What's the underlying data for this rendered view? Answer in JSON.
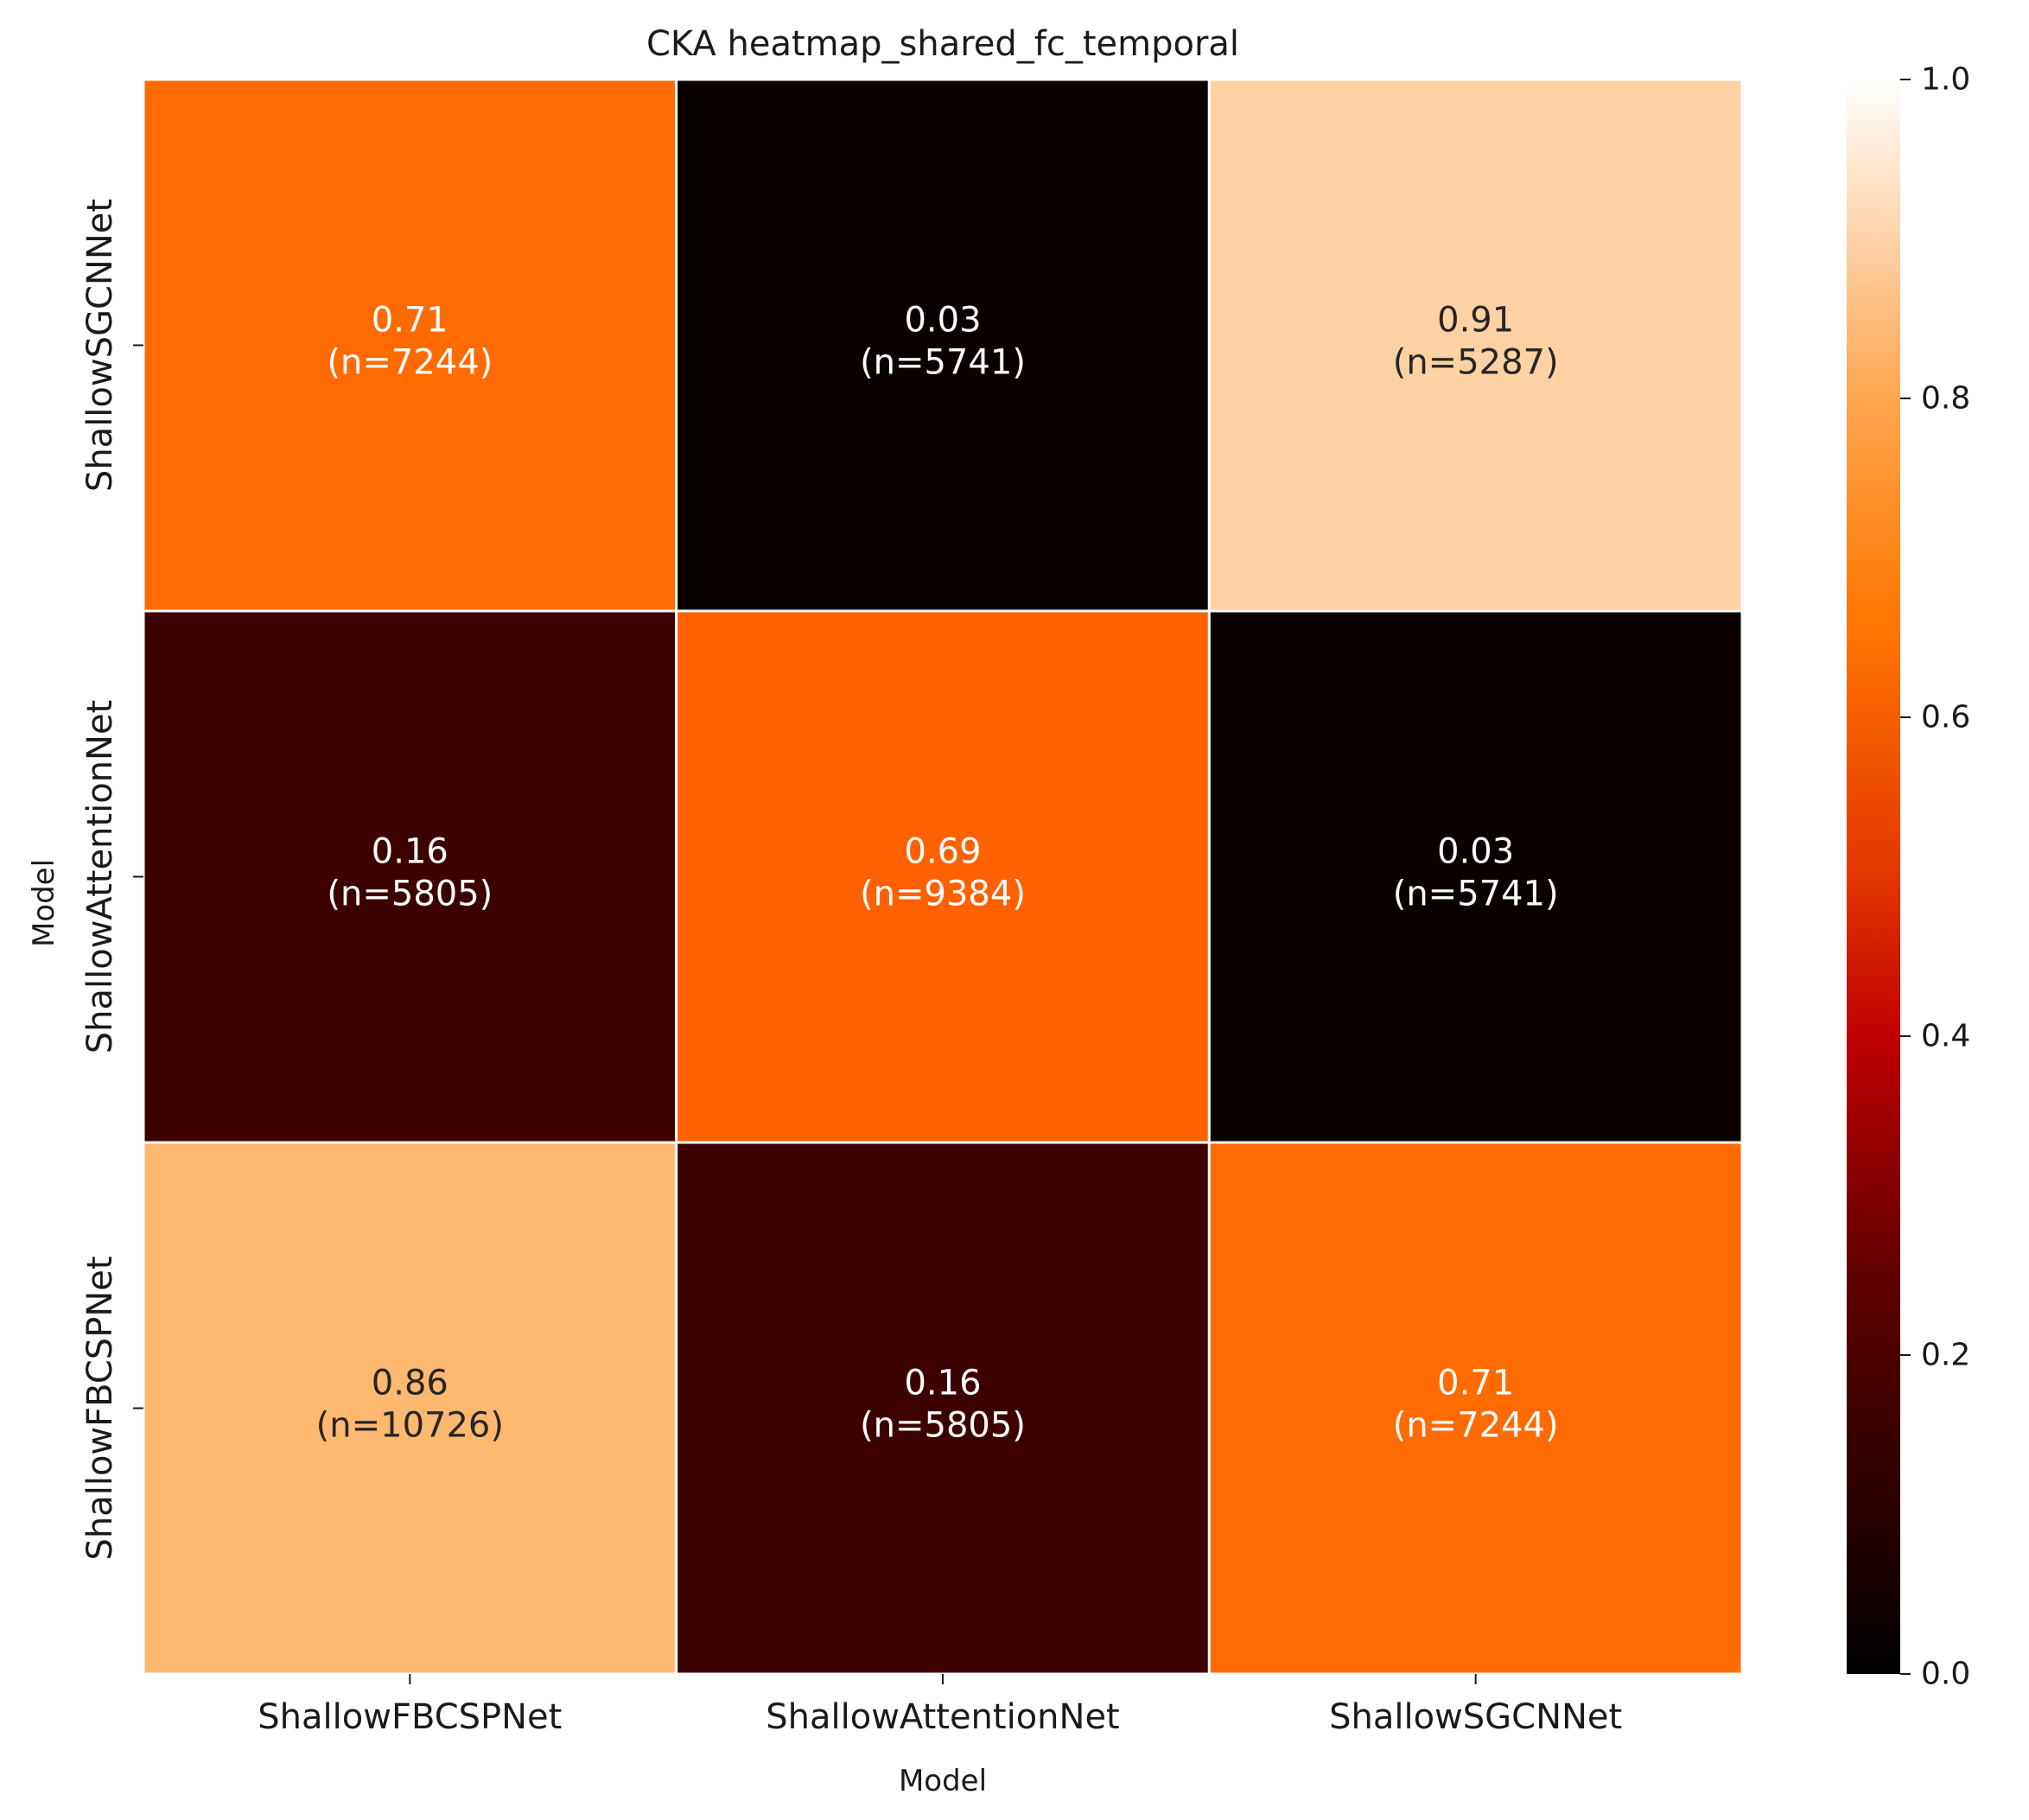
{
  "chart_data": {
    "type": "heatmap",
    "title": "CKA heatmap_shared_fc_temporal",
    "xlabel": "Model",
    "ylabel": "Model",
    "x_categories": [
      "ShallowFBCSPNet",
      "ShallowAttentionNet",
      "ShallowSGCNNet"
    ],
    "y_categories": [
      "ShallowSGCNNet",
      "ShallowAttentionNet",
      "ShallowFBCSPNet"
    ],
    "cells": [
      [
        {
          "value": 0.71,
          "label": "0.71",
          "count_label": "(n=7244)"
        },
        {
          "value": 0.03,
          "label": "0.03",
          "count_label": "(n=5741)"
        },
        {
          "value": 0.91,
          "label": "0.91",
          "count_label": "(n=5287)"
        }
      ],
      [
        {
          "value": 0.16,
          "label": "0.16",
          "count_label": "(n=5805)"
        },
        {
          "value": 0.69,
          "label": "0.69",
          "count_label": "(n=9384)"
        },
        {
          "value": 0.03,
          "label": "0.03",
          "count_label": "(n=5741)"
        }
      ],
      [
        {
          "value": 0.86,
          "label": "0.86",
          "count_label": "(n=10726)"
        },
        {
          "value": 0.16,
          "label": "0.16",
          "count_label": "(n=5805)"
        },
        {
          "value": 0.71,
          "label": "0.71",
          "count_label": "(n=7244)"
        }
      ]
    ],
    "colorbar": {
      "range": [
        0,
        1
      ],
      "ticks": [
        "0.0",
        "0.2",
        "0.4",
        "0.6",
        "0.8",
        "1.0"
      ],
      "colormap": "gist_heat"
    },
    "grid": false,
    "legend": "colorbar-right"
  }
}
